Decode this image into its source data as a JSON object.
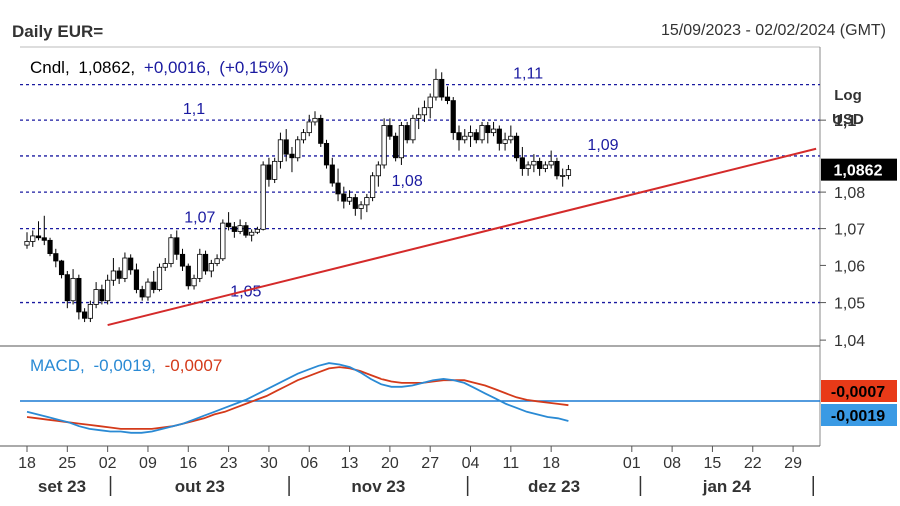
{
  "header": {
    "title": "Daily EUR=",
    "date_range": "15/09/2023 - 02/02/2024 (GMT)"
  },
  "legend": {
    "prefix": "Cndl,",
    "last": "1,0862,",
    "change": "+0,0016,",
    "change_pct": "(+0,15%)"
  },
  "axis": {
    "log_label": "Log",
    "currency_label": "USD",
    "last_price_tag": "1,0862"
  },
  "macd": {
    "label": "MACD,",
    "macd_value": "-0,0019,",
    "signal_value": "-0,0007",
    "macd_tag": "-0,0019",
    "signal_tag": "-0,0007"
  },
  "colors": {
    "bull": "#ffffff",
    "bear": "#000000",
    "trendline": "#d42a2a",
    "levels": "#1a1aa0",
    "macd": "#2a8ad4",
    "signal": "#d43a1a",
    "zero": "#1a7ad4"
  },
  "chart_data": {
    "type": "candlestick",
    "scale": "log",
    "y_ticks": [
      "1,04",
      "1,05",
      "1,06",
      "1,07",
      "1,08",
      "1,1"
    ],
    "x_ticks": [
      "18",
      "25",
      "02",
      "09",
      "16",
      "23",
      "30",
      "06",
      "13",
      "20",
      "27",
      "04",
      "11",
      "18",
      "01",
      "08",
      "15",
      "22",
      "29"
    ],
    "x_tick_indices": [
      0,
      7,
      14,
      21,
      28,
      35,
      42,
      49,
      56,
      63,
      70,
      77,
      84,
      91,
      105,
      112,
      119,
      126,
      133
    ],
    "months": [
      "set 23",
      "out 23",
      "nov 23",
      "dez 23",
      "jan 24"
    ],
    "month_separators_at": [
      14.5,
      45.5,
      76.5,
      106.5
    ],
    "levels": [
      {
        "value": 1.05,
        "label": "1,05"
      },
      {
        "value": 1.07,
        "label": "1,07"
      },
      {
        "value": 1.08,
        "label": "1,08"
      },
      {
        "value": 1.09,
        "label": "1,09"
      },
      {
        "value": 1.1,
        "label": "1,1"
      },
      {
        "value": 1.11,
        "label": "1,11"
      }
    ],
    "trendline": {
      "from": [
        14,
        1.044
      ],
      "to": [
        137,
        1.092
      ]
    },
    "candles": [
      [
        1.0655,
        1.069,
        1.0645,
        1.0665
      ],
      [
        1.0665,
        1.0695,
        1.065,
        1.068
      ],
      [
        1.068,
        1.072,
        1.0668,
        1.0675
      ],
      [
        1.0675,
        1.0735,
        1.0655,
        1.0668
      ],
      [
        1.0668,
        1.0675,
        1.0625,
        1.0632
      ],
      [
        1.0632,
        1.0645,
        1.0595,
        1.0612
      ],
      [
        1.0612,
        1.0615,
        1.0565,
        1.0575
      ],
      [
        1.0575,
        1.0585,
        1.0485,
        1.0505
      ],
      [
        1.0505,
        1.059,
        1.0495,
        1.0565
      ],
      [
        1.0565,
        1.0575,
        1.0455,
        1.0475
      ],
      [
        1.0475,
        1.0485,
        1.0448,
        1.0458
      ],
      [
        1.0458,
        1.0505,
        1.0448,
        1.0495
      ],
      [
        1.0495,
        1.0555,
        1.0485,
        1.0535
      ],
      [
        1.0535,
        1.0548,
        1.0495,
        1.0505
      ],
      [
        1.0505,
        1.0575,
        1.0495,
        1.056
      ],
      [
        1.056,
        1.062,
        1.0545,
        1.0585
      ],
      [
        1.0585,
        1.0595,
        1.055,
        1.0565
      ],
      [
        1.0565,
        1.0635,
        1.0555,
        1.062
      ],
      [
        1.062,
        1.063,
        1.0575,
        1.0588
      ],
      [
        1.0588,
        1.0605,
        1.0525,
        1.0535
      ],
      [
        1.0535,
        1.0545,
        1.0505,
        1.0515
      ],
      [
        1.0515,
        1.0565,
        1.0505,
        1.0555
      ],
      [
        1.0555,
        1.0585,
        1.0525,
        1.0535
      ],
      [
        1.0535,
        1.0605,
        1.053,
        1.0595
      ],
      [
        1.0595,
        1.062,
        1.0585,
        1.0605
      ],
      [
        1.0605,
        1.0685,
        1.0595,
        1.0675
      ],
      [
        1.0675,
        1.0695,
        1.0615,
        1.063
      ],
      [
        1.063,
        1.0645,
        1.0585,
        1.0598
      ],
      [
        1.0598,
        1.0605,
        1.0535,
        1.0545
      ],
      [
        1.0545,
        1.0575,
        1.0535,
        1.0565
      ],
      [
        1.0565,
        1.0645,
        1.0555,
        1.063
      ],
      [
        1.063,
        1.064,
        1.0575,
        1.0585
      ],
      [
        1.0585,
        1.0615,
        1.0568,
        1.0605
      ],
      [
        1.0605,
        1.063,
        1.0598,
        1.0618
      ],
      [
        1.0618,
        1.0725,
        1.0612,
        1.0715
      ],
      [
        1.0715,
        1.0745,
        1.0695,
        1.0705
      ],
      [
        1.0705,
        1.0718,
        1.0675,
        1.0692
      ],
      [
        1.0692,
        1.0725,
        1.0685,
        1.0708
      ],
      [
        1.0708,
        1.0718,
        1.0675,
        1.0682
      ],
      [
        1.0682,
        1.0698,
        1.0665,
        1.069
      ],
      [
        1.069,
        1.0705,
        1.0685,
        1.0698
      ],
      [
        1.0698,
        1.0885,
        1.0695,
        1.0875
      ],
      [
        1.0875,
        1.0895,
        1.0815,
        1.0835
      ],
      [
        1.0835,
        1.0895,
        1.0825,
        1.0885
      ],
      [
        1.0885,
        1.0965,
        1.0865,
        1.0945
      ],
      [
        1.0945,
        1.0975,
        1.0885,
        1.0905
      ],
      [
        1.0905,
        1.0925,
        1.0855,
        1.0895
      ],
      [
        1.0895,
        1.0955,
        1.0885,
        1.0945
      ],
      [
        1.0945,
        1.0975,
        1.0935,
        1.0965
      ],
      [
        1.0965,
        1.1015,
        1.0955,
        1.0995
      ],
      [
        1.0995,
        1.1025,
        1.0985,
        1.1005
      ],
      [
        1.1005,
        1.1015,
        1.0925,
        1.0935
      ],
      [
        1.0935,
        1.0945,
        1.0865,
        1.0875
      ],
      [
        1.0875,
        1.0895,
        1.0815,
        1.0825
      ],
      [
        1.0825,
        1.0865,
        1.0775,
        1.0795
      ],
      [
        1.0795,
        1.0815,
        1.0755,
        1.0775
      ],
      [
        1.0775,
        1.0805,
        1.0765,
        1.0785
      ],
      [
        1.0785,
        1.0795,
        1.0735,
        1.0755
      ],
      [
        1.0755,
        1.0775,
        1.0725,
        1.0765
      ],
      [
        1.0765,
        1.0795,
        1.0745,
        1.0785
      ],
      [
        1.0785,
        1.0855,
        1.0775,
        1.0845
      ],
      [
        1.0845,
        1.0885,
        1.0815,
        1.0875
      ],
      [
        1.0875,
        1.1005,
        1.0865,
        1.0985
      ],
      [
        1.0985,
        1.1005,
        1.0945,
        1.0955
      ],
      [
        1.0955,
        1.0965,
        1.0885,
        1.0895
      ],
      [
        1.0895,
        1.0995,
        1.0875,
        1.0985
      ],
      [
        1.0985,
        1.0995,
        1.0935,
        1.0945
      ],
      [
        1.0945,
        1.1015,
        1.0935,
        1.1005
      ],
      [
        1.1005,
        1.1035,
        1.0975,
        1.1015
      ],
      [
        1.1015,
        1.1055,
        1.0995,
        1.1035
      ],
      [
        1.1035,
        1.1075,
        1.1005,
        1.1065
      ],
      [
        1.1065,
        1.1145,
        1.1055,
        1.1115
      ],
      [
        1.1115,
        1.1135,
        1.1055,
        1.1065
      ],
      [
        1.1065,
        1.1095,
        1.1045,
        1.1055
      ],
      [
        1.1055,
        1.1065,
        1.0945,
        1.0965
      ],
      [
        1.0965,
        1.0985,
        1.0915,
        1.0945
      ],
      [
        1.0945,
        1.0975,
        1.0935,
        1.0955
      ],
      [
        1.0955,
        1.0985,
        1.0925,
        1.0965
      ],
      [
        1.0965,
        1.0975,
        1.0935,
        1.0945
      ],
      [
        1.0945,
        1.0995,
        1.0935,
        1.0985
      ],
      [
        1.0985,
        1.0995,
        1.0935,
        1.0965
      ],
      [
        1.0965,
        1.0995,
        1.0955,
        1.0975
      ],
      [
        1.0975,
        1.0985,
        1.0915,
        1.0935
      ],
      [
        1.0935,
        1.0965,
        1.0915,
        1.0945
      ],
      [
        1.0945,
        1.0985,
        1.0935,
        1.0955
      ],
      [
        1.0955,
        1.0965,
        1.0885,
        1.0895
      ],
      [
        1.0895,
        1.0925,
        1.0845,
        1.0865
      ],
      [
        1.0865,
        1.0885,
        1.0845,
        1.0875
      ],
      [
        1.0875,
        1.0905,
        1.0855,
        1.0885
      ],
      [
        1.0885,
        1.0895,
        1.0845,
        1.0865
      ],
      [
        1.0865,
        1.0885,
        1.0855,
        1.0875
      ],
      [
        1.0875,
        1.0915,
        1.0865,
        1.0885
      ],
      [
        1.0885,
        1.0895,
        1.0835,
        1.0845
      ],
      [
        1.0845,
        1.0865,
        1.0815,
        1.0846
      ],
      [
        1.0846,
        1.0875,
        1.0835,
        1.0862
      ]
    ],
    "macd_line": [
      -0.0012,
      -0.0014,
      -0.0016,
      -0.0018,
      -0.002,
      -0.0023,
      -0.0025,
      -0.0026,
      -0.0027,
      -0.0027,
      -0.0028,
      -0.0028,
      -0.0027,
      -0.0025,
      -0.0023,
      -0.0021,
      -0.0018,
      -0.0015,
      -0.0012,
      -0.0009,
      -0.0006,
      -0.0003,
      0.0001,
      0.0005,
      0.0009,
      0.0013,
      0.0017,
      0.002,
      0.0023,
      0.0025,
      0.0024,
      0.0022,
      0.0018,
      0.0013,
      0.0009,
      0.0007,
      0.0007,
      0.0008,
      0.001,
      0.0012,
      0.0013,
      0.0012,
      0.001,
      0.0006,
      0.0002,
      -0.0002,
      -0.0006,
      -0.0009,
      -0.0012,
      -0.0014,
      -0.0016,
      -0.0017,
      -0.0019
    ],
    "signal_line": [
      -0.0016,
      -0.0017,
      -0.0018,
      -0.0019,
      -0.002,
      -0.0021,
      -0.0022,
      -0.0023,
      -0.0024,
      -0.0025,
      -0.0025,
      -0.0025,
      -0.0025,
      -0.0024,
      -0.0023,
      -0.0021,
      -0.0019,
      -0.0017,
      -0.0014,
      -0.0012,
      -0.0009,
      -0.0006,
      -0.0003,
      0.0,
      0.0004,
      0.0008,
      0.0012,
      0.0015,
      0.0018,
      0.0021,
      0.0022,
      0.0021,
      0.0019,
      0.0016,
      0.0013,
      0.0011,
      0.001,
      0.001,
      0.001,
      0.0011,
      0.0012,
      0.0012,
      0.0012,
      0.001,
      0.0008,
      0.0005,
      0.0002,
      -0.0001,
      -0.0003,
      -0.0004,
      -0.0005,
      -0.0006,
      -0.0007
    ],
    "macd_ylim": [
      -0.0035,
      0.0035
    ]
  }
}
